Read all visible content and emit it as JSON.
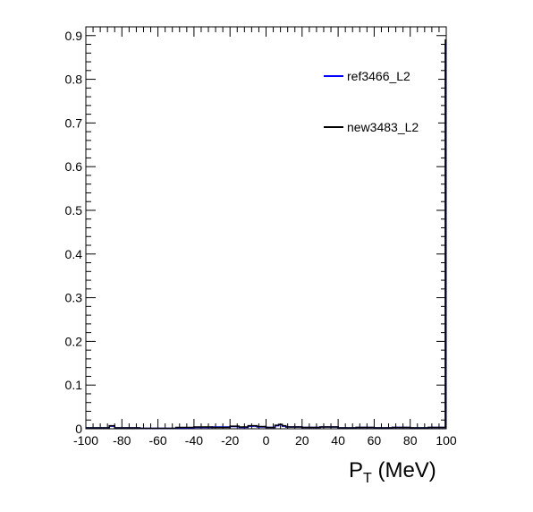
{
  "chart_data": {
    "type": "line",
    "title": "",
    "xlabel": {
      "main": "P",
      "sub": "T",
      "unit": " (MeV)"
    },
    "ylabel": "",
    "xlim": [
      -100,
      100
    ],
    "ylim": [
      0,
      0.92
    ],
    "x_ticks": [
      -100,
      -80,
      -60,
      -40,
      -20,
      0,
      20,
      40,
      60,
      80,
      100
    ],
    "y_ticks": [
      0,
      0.1,
      0.2,
      0.3,
      0.4,
      0.5,
      0.6,
      0.7,
      0.8,
      0.9
    ],
    "grid": false,
    "legend_position": "top-right",
    "series": [
      {
        "name": "ref3466_L2",
        "color": "#0000ff",
        "x": [
          -90,
          -87,
          -84,
          -70,
          -50,
          -40,
          -30,
          -20,
          -15,
          -10,
          -5,
          0,
          5,
          7,
          9,
          11,
          20,
          30,
          40,
          50,
          60,
          70,
          80,
          90,
          99.5
        ],
        "y": [
          0.002,
          0.006,
          0.002,
          0.001,
          0.002,
          0.003,
          0.004,
          0.005,
          0.003,
          0.006,
          0.004,
          0.003,
          0.007,
          0.009,
          0.006,
          0.004,
          0.003,
          0.004,
          0.002,
          0.003,
          0.002,
          0.003,
          0.002,
          0.003,
          0.88
        ]
      },
      {
        "name": "new3483_L2",
        "color": "#000000",
        "x": [
          -90,
          -87,
          -84,
          -70,
          -50,
          -40,
          -30,
          -20,
          -15,
          -10,
          -5,
          0,
          5,
          7,
          9,
          11,
          20,
          30,
          40,
          50,
          60,
          70,
          80,
          90,
          99.5
        ],
        "y": [
          0.002,
          0.007,
          0.002,
          0.001,
          0.003,
          0.004,
          0.003,
          0.006,
          0.004,
          0.007,
          0.005,
          0.003,
          0.008,
          0.01,
          0.007,
          0.004,
          0.003,
          0.004,
          0.002,
          0.003,
          0.002,
          0.003,
          0.002,
          0.003,
          0.89
        ]
      }
    ]
  }
}
